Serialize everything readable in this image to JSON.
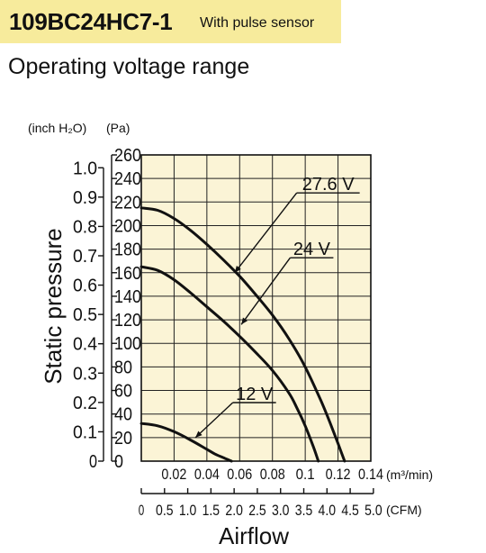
{
  "header": {
    "model": "109BC24HC7-1",
    "model_note": "With pulse sensor",
    "subtitle": "Operating voltage range"
  },
  "colors": {
    "title_bar": "#f7eb9c",
    "plot_background": "#fbf4d6",
    "grid": "#222222",
    "curve": "#111111"
  },
  "chart_data": {
    "type": "line",
    "title": "",
    "xlabel": "Airflow",
    "ylabel": "Static pressure",
    "grid": true,
    "xlim": [
      0,
      0.14
    ],
    "ylim": [
      0,
      260
    ],
    "left_axis_units": [
      "(inch H₂O)",
      "(Pa)"
    ],
    "y_ticks_pa": [
      "0",
      "20",
      "40",
      "60",
      "80",
      "100",
      "120",
      "140",
      "160",
      "180",
      "200",
      "220",
      "240",
      "260"
    ],
    "y_ticks_inch": [
      {
        "label": "0",
        "value": 0
      },
      {
        "label": "0.1",
        "value": 0.1
      },
      {
        "label": "0.2",
        "value": 0.2
      },
      {
        "label": "0.3",
        "value": 0.3
      },
      {
        "label": "0.4",
        "value": 0.4
      },
      {
        "label": "0.5",
        "value": 0.5
      },
      {
        "label": "0.6",
        "value": 0.6
      },
      {
        "label": "0.7",
        "value": 0.7
      },
      {
        "label": "0.8",
        "value": 0.8
      },
      {
        "label": "0.9",
        "value": 0.9
      },
      {
        "label": "1.0",
        "value": 1.0
      }
    ],
    "x_ticks_m3": [
      "0.02",
      "0.04",
      "0.06",
      "0.08",
      "0.1",
      "0.12",
      "0.14"
    ],
    "x_unit_m3": "(m³/min)",
    "x_ticks_cfm": [
      "0",
      "0.5",
      "1.0",
      "1.5",
      "2.0",
      "2.5",
      "3.0",
      "3.5",
      "4.0",
      "4.5",
      "5.0"
    ],
    "x_unit_cfm": "(CFM)",
    "series": [
      {
        "name": "27.6 V",
        "x": [
          0,
          0.01,
          0.02,
          0.03,
          0.04,
          0.05,
          0.06,
          0.07,
          0.08,
          0.09,
          0.1,
          0.11,
          0.115,
          0.12,
          0.124
        ],
        "y": [
          215,
          213,
          206,
          196,
          184,
          171,
          157,
          141,
          124,
          104,
          80,
          50,
          33,
          15,
          0
        ],
        "label_at": [
          0.114,
          230
        ],
        "pointer_at": [
          0.057,
          160
        ]
      },
      {
        "name": "24 V",
        "x": [
          0,
          0.01,
          0.02,
          0.03,
          0.04,
          0.05,
          0.06,
          0.07,
          0.08,
          0.09,
          0.095,
          0.1,
          0.105,
          0.108
        ],
        "y": [
          165,
          162,
          154,
          143,
          131,
          119,
          106,
          92,
          77,
          58,
          45,
          30,
          12,
          0
        ],
        "label_at": [
          0.104,
          175
        ],
        "pointer_at": [
          0.061,
          116
        ]
      },
      {
        "name": "12 V",
        "x": [
          0,
          0.01,
          0.02,
          0.03,
          0.04,
          0.045,
          0.05,
          0.055
        ],
        "y": [
          32,
          30,
          25,
          18,
          10,
          6,
          3,
          0
        ],
        "label_at": [
          0.069,
          52
        ],
        "pointer_at": [
          0.033,
          20
        ]
      }
    ]
  }
}
